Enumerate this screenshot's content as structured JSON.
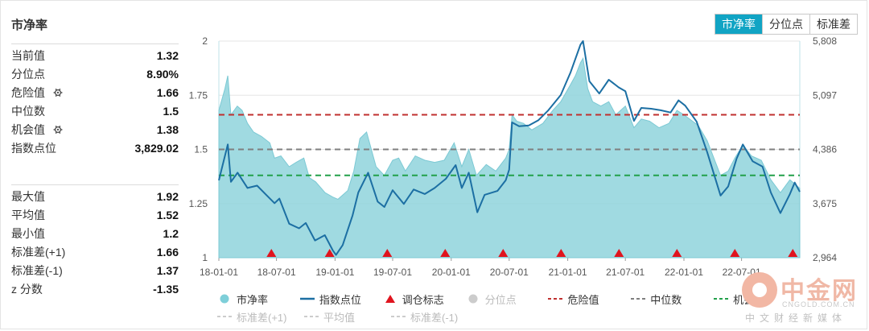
{
  "panel": {
    "title": "市净率"
  },
  "stats_top": [
    {
      "label": "当前值",
      "value": "1.32",
      "gear": false
    },
    {
      "label": "分位点",
      "value": "8.90%",
      "gear": false
    },
    {
      "label": "危险值",
      "value": "1.66",
      "gear": true
    },
    {
      "label": "中位数",
      "value": "1.5",
      "gear": false
    },
    {
      "label": "机会值",
      "value": "1.38",
      "gear": true
    },
    {
      "label": "指数点位",
      "value": "3,829.02",
      "gear": false
    }
  ],
  "stats_bottom": [
    {
      "label": "最大值",
      "value": "1.92"
    },
    {
      "label": "平均值",
      "value": "1.52"
    },
    {
      "label": "最小值",
      "value": "1.2"
    },
    {
      "label": "标准差(+1)",
      "value": "1.66"
    },
    {
      "label": "标准差(-1)",
      "value": "1.37"
    },
    {
      "label": "z 分数",
      "value": "-1.35"
    }
  ],
  "tabs": [
    {
      "label": "市净率",
      "active": true
    },
    {
      "label": "分位点",
      "active": false
    },
    {
      "label": "标准差",
      "active": false
    }
  ],
  "chart_data": {
    "type": "area",
    "x_ticks": [
      "18-01-01",
      "18-07-01",
      "19-01-01",
      "19-07-01",
      "20-01-01",
      "20-07-01",
      "21-01-01",
      "21-07-01",
      "22-01-01",
      "22-07-01"
    ],
    "x_range": [
      "2018-01-01",
      "2022-12-31"
    ],
    "y_left": {
      "range": [
        1,
        2
      ],
      "ticks": [
        "1",
        "1.25",
        "1.5",
        "1.75",
        "2"
      ]
    },
    "y_right": {
      "range": [
        2964,
        5808
      ],
      "ticks": [
        "2,964",
        "3,675",
        "4,386",
        "5,097",
        "5,808"
      ]
    },
    "series": [
      {
        "name": "市净率",
        "axis": "left",
        "color": "#8fd3dc",
        "points": [
          [
            "2018-01-01",
            1.68
          ],
          [
            "2018-01-20",
            1.78
          ],
          [
            "2018-01-29",
            1.84
          ],
          [
            "2018-02-08",
            1.66
          ],
          [
            "2018-02-28",
            1.7
          ],
          [
            "2018-03-15",
            1.68
          ],
          [
            "2018-04-01",
            1.62
          ],
          [
            "2018-04-20",
            1.58
          ],
          [
            "2018-05-15",
            1.56
          ],
          [
            "2018-06-10",
            1.53
          ],
          [
            "2018-06-25",
            1.46
          ],
          [
            "2018-07-15",
            1.47
          ],
          [
            "2018-08-10",
            1.42
          ],
          [
            "2018-09-01",
            1.44
          ],
          [
            "2018-09-25",
            1.46
          ],
          [
            "2018-10-12",
            1.37
          ],
          [
            "2018-11-01",
            1.35
          ],
          [
            "2018-12-01",
            1.3
          ],
          [
            "2018-12-25",
            1.28
          ],
          [
            "2019-01-10",
            1.27
          ],
          [
            "2019-02-10",
            1.31
          ],
          [
            "2019-03-01",
            1.4
          ],
          [
            "2019-03-20",
            1.55
          ],
          [
            "2019-04-10",
            1.58
          ],
          [
            "2019-05-10",
            1.42
          ],
          [
            "2019-06-05",
            1.38
          ],
          [
            "2019-07-01",
            1.45
          ],
          [
            "2019-07-20",
            1.46
          ],
          [
            "2019-08-10",
            1.4
          ],
          [
            "2019-09-10",
            1.47
          ],
          [
            "2019-10-10",
            1.45
          ],
          [
            "2019-11-10",
            1.44
          ],
          [
            "2019-12-10",
            1.45
          ],
          [
            "2020-01-10",
            1.53
          ],
          [
            "2020-02-03",
            1.42
          ],
          [
            "2020-02-25",
            1.5
          ],
          [
            "2020-03-20",
            1.38
          ],
          [
            "2020-04-20",
            1.43
          ],
          [
            "2020-05-20",
            1.4
          ],
          [
            "2020-06-20",
            1.46
          ],
          [
            "2020-07-01",
            1.5
          ],
          [
            "2020-07-10",
            1.66
          ],
          [
            "2020-07-25",
            1.63
          ],
          [
            "2020-08-15",
            1.62
          ],
          [
            "2020-09-10",
            1.59
          ],
          [
            "2020-10-15",
            1.62
          ],
          [
            "2020-11-15",
            1.68
          ],
          [
            "2020-12-10",
            1.72
          ],
          [
            "2021-01-10",
            1.8
          ],
          [
            "2021-01-25",
            1.84
          ],
          [
            "2021-02-10",
            1.9
          ],
          [
            "2021-02-18",
            1.92
          ],
          [
            "2021-03-05",
            1.78
          ],
          [
            "2021-03-20",
            1.72
          ],
          [
            "2021-04-15",
            1.7
          ],
          [
            "2021-05-10",
            1.72
          ],
          [
            "2021-06-01",
            1.66
          ],
          [
            "2021-07-01",
            1.7
          ],
          [
            "2021-07-28",
            1.6
          ],
          [
            "2021-08-20",
            1.64
          ],
          [
            "2021-09-15",
            1.63
          ],
          [
            "2021-10-15",
            1.6
          ],
          [
            "2021-11-15",
            1.62
          ],
          [
            "2021-12-10",
            1.68
          ],
          [
            "2022-01-01",
            1.66
          ],
          [
            "2022-02-15",
            1.61
          ],
          [
            "2022-03-15",
            1.54
          ],
          [
            "2022-04-26",
            1.38
          ],
          [
            "2022-05-20",
            1.4
          ],
          [
            "2022-06-10",
            1.46
          ],
          [
            "2022-07-05",
            1.52
          ],
          [
            "2022-08-01",
            1.47
          ],
          [
            "2022-09-01",
            1.45
          ],
          [
            "2022-10-01",
            1.36
          ],
          [
            "2022-10-31",
            1.3
          ],
          [
            "2022-11-30",
            1.36
          ],
          [
            "2022-12-31",
            1.32
          ]
        ]
      },
      {
        "name": "指数点位",
        "axis": "right",
        "color": "#1c6fa3",
        "points": [
          [
            "2018-01-01",
            3980
          ],
          [
            "2018-01-29",
            4450
          ],
          [
            "2018-02-08",
            3960
          ],
          [
            "2018-03-01",
            4080
          ],
          [
            "2018-04-01",
            3880
          ],
          [
            "2018-05-01",
            3910
          ],
          [
            "2018-06-01",
            3780
          ],
          [
            "2018-06-25",
            3680
          ],
          [
            "2018-07-10",
            3740
          ],
          [
            "2018-08-10",
            3410
          ],
          [
            "2018-09-10",
            3350
          ],
          [
            "2018-10-01",
            3420
          ],
          [
            "2018-10-30",
            3190
          ],
          [
            "2018-11-30",
            3260
          ],
          [
            "2018-12-25",
            3060
          ],
          [
            "2019-01-04",
            3000
          ],
          [
            "2019-01-25",
            3130
          ],
          [
            "2019-02-25",
            3520
          ],
          [
            "2019-03-15",
            3820
          ],
          [
            "2019-04-15",
            4080
          ],
          [
            "2019-05-15",
            3700
          ],
          [
            "2019-06-05",
            3630
          ],
          [
            "2019-07-01",
            3850
          ],
          [
            "2019-08-05",
            3670
          ],
          [
            "2019-09-05",
            3860
          ],
          [
            "2019-10-10",
            3800
          ],
          [
            "2019-11-10",
            3880
          ],
          [
            "2019-12-15",
            4000
          ],
          [
            "2020-01-15",
            4180
          ],
          [
            "2020-02-03",
            3880
          ],
          [
            "2020-02-25",
            4080
          ],
          [
            "2020-03-23",
            3560
          ],
          [
            "2020-04-15",
            3790
          ],
          [
            "2020-05-25",
            3840
          ],
          [
            "2020-06-20",
            3980
          ],
          [
            "2020-07-01",
            4120
          ],
          [
            "2020-07-10",
            4740
          ],
          [
            "2020-08-01",
            4690
          ],
          [
            "2020-09-01",
            4700
          ],
          [
            "2020-10-01",
            4770
          ],
          [
            "2020-11-01",
            4900
          ],
          [
            "2020-12-10",
            5100
          ],
          [
            "2021-01-10",
            5400
          ],
          [
            "2021-02-10",
            5760
          ],
          [
            "2021-02-18",
            5808
          ],
          [
            "2021-03-10",
            5280
          ],
          [
            "2021-04-10",
            5120
          ],
          [
            "2021-05-10",
            5300
          ],
          [
            "2021-06-10",
            5200
          ],
          [
            "2021-07-01",
            5150
          ],
          [
            "2021-07-28",
            4760
          ],
          [
            "2021-08-20",
            4930
          ],
          [
            "2021-09-20",
            4920
          ],
          [
            "2021-10-20",
            4900
          ],
          [
            "2021-11-20",
            4870
          ],
          [
            "2021-12-15",
            5030
          ],
          [
            "2022-01-05",
            4960
          ],
          [
            "2022-02-10",
            4750
          ],
          [
            "2022-03-15",
            4350
          ],
          [
            "2022-04-26",
            3780
          ],
          [
            "2022-05-20",
            3900
          ],
          [
            "2022-06-15",
            4260
          ],
          [
            "2022-07-05",
            4450
          ],
          [
            "2022-08-05",
            4230
          ],
          [
            "2022-09-05",
            4160
          ],
          [
            "2022-10-01",
            3820
          ],
          [
            "2022-10-31",
            3550
          ],
          [
            "2022-11-30",
            3800
          ],
          [
            "2022-12-15",
            3950
          ],
          [
            "2022-12-31",
            3829.02
          ]
        ]
      }
    ],
    "reference_lines": [
      {
        "name": "危险值",
        "value": 1.66,
        "color": "#c0302f",
        "dash": true
      },
      {
        "name": "中位数",
        "value": 1.5,
        "color": "#7f7f7f",
        "dash": true
      },
      {
        "name": "机会值",
        "value": 1.38,
        "color": "#22a04a",
        "dash": true
      }
    ],
    "rebalance_markers": {
      "name": "调仓标志",
      "color": "#e0141e",
      "dates": [
        "2018-06-15",
        "2018-12-15",
        "2019-06-14",
        "2019-12-13",
        "2020-06-12",
        "2020-12-11",
        "2021-06-11",
        "2021-12-10",
        "2022-06-10",
        "2022-12-09"
      ]
    },
    "legend": {
      "placement": "bottom",
      "rows": [
        [
          {
            "name": "市净率",
            "kind": "dot",
            "color": "#7ecfd9",
            "enabled": true
          },
          {
            "name": "指数点位",
            "kind": "line",
            "color": "#1c6fa3",
            "enabled": true
          },
          {
            "name": "调仓标志",
            "kind": "triangle",
            "color": "#e0141e",
            "enabled": true
          },
          {
            "name": "分位点",
            "kind": "dot",
            "color": "#cccccc",
            "enabled": false
          },
          {
            "name": "危险值",
            "kind": "dash",
            "color": "#c0302f",
            "enabled": true
          },
          {
            "name": "中位数",
            "kind": "dash",
            "color": "#7f7f7f",
            "enabled": true
          },
          {
            "name": "机会值",
            "kind": "dash",
            "color": "#22a04a",
            "enabled": true
          }
        ],
        [
          {
            "name": "标准差(+1)",
            "kind": "dash",
            "color": "#cccccc",
            "enabled": false
          },
          {
            "name": "平均值",
            "kind": "dash",
            "color": "#cccccc",
            "enabled": false
          },
          {
            "name": "标准差(-1)",
            "kind": "dash",
            "color": "#cccccc",
            "enabled": false
          }
        ]
      ]
    }
  },
  "watermark": {
    "title": "中金网",
    "url": "CNGOLD.COM.CN",
    "slogan": "中文财经新媒体"
  }
}
